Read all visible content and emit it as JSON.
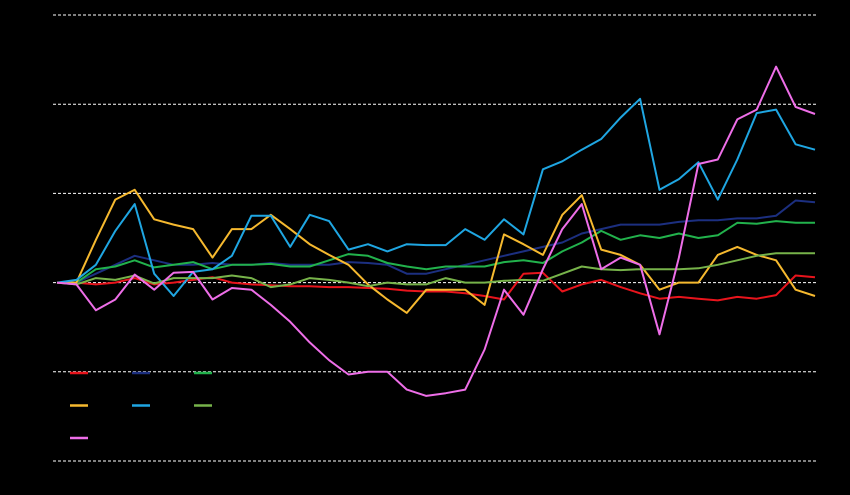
{
  "chart_data": {
    "type": "line",
    "categories": [
      null,
      null,
      null,
      null,
      null,
      null,
      null,
      null,
      null,
      null,
      null,
      null,
      null,
      null,
      null,
      null,
      null,
      null,
      null,
      null,
      null,
      null,
      null,
      null,
      null,
      null,
      null,
      null,
      null,
      null,
      null,
      null,
      null,
      null,
      null,
      null,
      null,
      null,
      null,
      null
    ],
    "ylim": [
      80,
      130
    ],
    "yticks": [
      80,
      90,
      100,
      110,
      120,
      130
    ],
    "grid": true,
    "series": [
      {
        "color": "#e8141c",
        "values": [
          100,
          100,
          99.8,
          100,
          100.5,
          99.8,
          100,
          100.3,
          100.6,
          100,
          99.8,
          99.7,
          99.6,
          99.6,
          99.5,
          99.5,
          99.4,
          99.3,
          99.1,
          99,
          99,
          98.8,
          98.5,
          98.1,
          101,
          101.1,
          99,
          99.8,
          100.3,
          99.5,
          98.8,
          98.2,
          98.4,
          98.2,
          98,
          98.4,
          98.2,
          98.6,
          100.8,
          100.6
        ]
      },
      {
        "color": "#1c2f80",
        "values": [
          100,
          100,
          101,
          102,
          103,
          102.5,
          102,
          102,
          102.2,
          102,
          102,
          102.2,
          102,
          102,
          102,
          102.3,
          102.2,
          102,
          101,
          101,
          101.5,
          102,
          102.5,
          103,
          103.5,
          104,
          104.5,
          105.5,
          106,
          106.5,
          106.5,
          106.5,
          106.8,
          107,
          107,
          107.2,
          107.2,
          107.5,
          109.2,
          109
        ]
      },
      {
        "color": "#22b24c",
        "values": [
          100,
          100,
          101.5,
          101.8,
          102.5,
          101.7,
          102,
          102.3,
          101.5,
          102,
          102,
          102.1,
          101.8,
          101.8,
          102.5,
          103.2,
          103,
          102.2,
          101.8,
          101.5,
          101.8,
          101.8,
          101.8,
          102.3,
          102.5,
          102.2,
          103.5,
          104.5,
          105.8,
          104.8,
          105.3,
          105,
          105.5,
          105,
          105.3,
          106.7,
          106.6,
          106.9,
          106.7,
          106.7
        ]
      },
      {
        "color": "#f6b92f",
        "values": [
          100,
          100,
          104.8,
          109.3,
          110.4,
          107.1,
          106.5,
          106,
          102.8,
          106,
          106,
          107.6,
          106,
          104.3,
          103.1,
          102,
          99.8,
          98.1,
          96.6,
          99.2,
          99.2,
          99.2,
          97.5,
          105.4,
          104.3,
          103.1,
          107.6,
          109.8,
          103.7,
          103.1,
          102,
          99.2,
          100,
          100,
          103.1,
          104,
          103.1,
          102.5,
          99.2,
          98.5
        ]
      },
      {
        "color": "#1fa6e2",
        "values": [
          100,
          100.3,
          102,
          105.8,
          108.8,
          101,
          98.5,
          101.2,
          101.5,
          103,
          107.5,
          107.5,
          104,
          107.6,
          106.9,
          103.7,
          104.3,
          103.5,
          104.3,
          104.2,
          104.2,
          106,
          104.8,
          107.1,
          105.4,
          112.7,
          113.6,
          114.9,
          116.1,
          118.5,
          120.6,
          110.4,
          111.6,
          113.5,
          109.3,
          113.8,
          119,
          119.4,
          115.5,
          114.9
        ]
      },
      {
        "color": "#77b34a",
        "values": [
          100,
          99.8,
          100.5,
          100.3,
          100.8,
          99.9,
          100.5,
          100.5,
          100.5,
          100.8,
          100.5,
          99.5,
          99.8,
          100.5,
          100.3,
          100,
          99.6,
          100,
          99.8,
          99.8,
          100.5,
          100,
          100,
          100.2,
          100.3,
          100.2,
          101,
          101.8,
          101.5,
          101.4,
          101.5,
          101.5,
          101.5,
          101.6,
          102,
          102.5,
          103,
          103.3,
          103.3,
          103.3
        ]
      },
      {
        "color": "#ee6ee8",
        "values": [
          100,
          99.8,
          96.9,
          98.1,
          100.9,
          99.2,
          101.1,
          101.2,
          98.1,
          99.4,
          99.2,
          97.5,
          95.6,
          93.3,
          91.3,
          89.7,
          90,
          90,
          88,
          87.3,
          87.6,
          88,
          92.5,
          99.2,
          96.4,
          101.5,
          106,
          108.8,
          101.5,
          102.8,
          102,
          94.2,
          102.8,
          113.3,
          113.8,
          118.3,
          119.4,
          124.2,
          119.7,
          118.9
        ]
      }
    ]
  }
}
